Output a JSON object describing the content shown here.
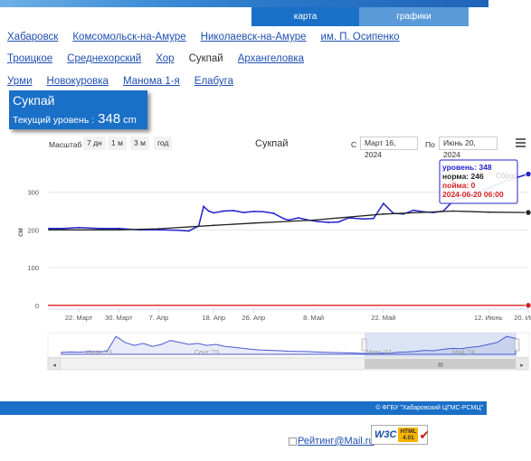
{
  "tabs": {
    "map": "карта",
    "graphs": "графики"
  },
  "nav": {
    "row1": [
      "Хабаровск",
      "Комсомольск-на-Амуре",
      "Николаевск-на-Амуре",
      "им. П. Осипенко"
    ],
    "row2_before": [
      "Троицкое",
      "Среднехорский",
      "Хор"
    ],
    "row2_current": "Сукпай",
    "row2_after": [
      "Архангеловка"
    ],
    "row3": [
      "Урми",
      "Новокуровка",
      "Манома 1-я",
      "Елабуга"
    ]
  },
  "station": {
    "name": "Сукпай",
    "level_label": "Текущий уровень :",
    "level_value": "348",
    "level_unit": "cm"
  },
  "toolbar": {
    "zoom_label": "Масштаб",
    "zoom_buttons": [
      "7 дн",
      "1 м",
      "3 м",
      "год"
    ],
    "title": "Сукпай",
    "from_label": "С",
    "from_date": "Март 16, 2024",
    "to_label": "По",
    "to_date": "Июнь 20, 2024"
  },
  "tooltip": {
    "level": "уровень: 348",
    "norm": "норма: 246",
    "floodplain": "пойма: 0",
    "datetime": "2024-06-20 06:00",
    "watermark": "Сброс"
  },
  "chart_data": {
    "type": "line",
    "ylabel": "см",
    "ylim": [
      -10,
      390
    ],
    "yticks": [
      0,
      100,
      200,
      300
    ],
    "x_start": "2024-03-16",
    "x_end": "2024-06-20",
    "x_tick_labels": [
      "22. Март",
      "30. Март",
      "7. Апр",
      "18. Апр",
      "26. Апр",
      "8. Май",
      "22. Май",
      "12. Июнь",
      "20. Июнь"
    ],
    "x_tick_dates": [
      "2024-03-22",
      "2024-03-30",
      "2024-04-07",
      "2024-04-18",
      "2024-04-26",
      "2024-05-08",
      "2024-05-22",
      "2024-06-12",
      "2024-06-20"
    ],
    "series": [
      {
        "name": "уровень",
        "color": "#2222cc",
        "points": [
          [
            "2024-03-16",
            204
          ],
          [
            "2024-03-19",
            204
          ],
          [
            "2024-03-22",
            206
          ],
          [
            "2024-03-26",
            204
          ],
          [
            "2024-03-30",
            204
          ],
          [
            "2024-04-03",
            200
          ],
          [
            "2024-04-07",
            200
          ],
          [
            "2024-04-11",
            199
          ],
          [
            "2024-04-13",
            197
          ],
          [
            "2024-04-15",
            210
          ],
          [
            "2024-04-16",
            262
          ],
          [
            "2024-04-17",
            250
          ],
          [
            "2024-04-18",
            245
          ],
          [
            "2024-04-20",
            250
          ],
          [
            "2024-04-22",
            251
          ],
          [
            "2024-04-24",
            246
          ],
          [
            "2024-04-26",
            249
          ],
          [
            "2024-04-28",
            248
          ],
          [
            "2024-04-30",
            244
          ],
          [
            "2024-05-02",
            230
          ],
          [
            "2024-05-03",
            226
          ],
          [
            "2024-05-05",
            232
          ],
          [
            "2024-05-07",
            226
          ],
          [
            "2024-05-09",
            222
          ],
          [
            "2024-05-11",
            220
          ],
          [
            "2024-05-13",
            221
          ],
          [
            "2024-05-15",
            232
          ],
          [
            "2024-05-18",
            229
          ],
          [
            "2024-05-20",
            230
          ],
          [
            "2024-05-22",
            270
          ],
          [
            "2024-05-24",
            244
          ],
          [
            "2024-05-26",
            242
          ],
          [
            "2024-05-28",
            252
          ],
          [
            "2024-05-30",
            248
          ],
          [
            "2024-06-01",
            246
          ],
          [
            "2024-06-03",
            250
          ],
          [
            "2024-06-05",
            278
          ],
          [
            "2024-06-07",
            285
          ],
          [
            "2024-06-09",
            296
          ],
          [
            "2024-06-12",
            310
          ],
          [
            "2024-06-14",
            322
          ],
          [
            "2024-06-16",
            332
          ],
          [
            "2024-06-18",
            340
          ],
          [
            "2024-06-20",
            348
          ]
        ]
      },
      {
        "name": "норма",
        "color": "#222222",
        "points": [
          [
            "2024-03-16",
            200
          ],
          [
            "2024-03-30",
            200
          ],
          [
            "2024-04-07",
            203
          ],
          [
            "2024-04-18",
            212
          ],
          [
            "2024-04-26",
            218
          ],
          [
            "2024-05-08",
            226
          ],
          [
            "2024-05-22",
            242
          ],
          [
            "2024-06-05",
            250
          ],
          [
            "2024-06-12",
            247
          ],
          [
            "2024-06-20",
            246
          ]
        ]
      },
      {
        "name": "пойма",
        "color": "#d82020",
        "points": [
          [
            "2024-03-16",
            0
          ],
          [
            "2024-06-20",
            0
          ]
        ]
      }
    ]
  },
  "navigator": {
    "labels": [
      "Июль '23",
      "Сент '23",
      "Март '24",
      "Май '24"
    ],
    "scroll_grip": "III"
  },
  "footer": {
    "copyright": "© ФГБУ \"Хабаровский ЦГМС-РСМЦ\"",
    "counter_alt": "Рейтинг@Mail.ru",
    "w3c_text": "W3C",
    "html_badge": "HTML 4.01"
  }
}
